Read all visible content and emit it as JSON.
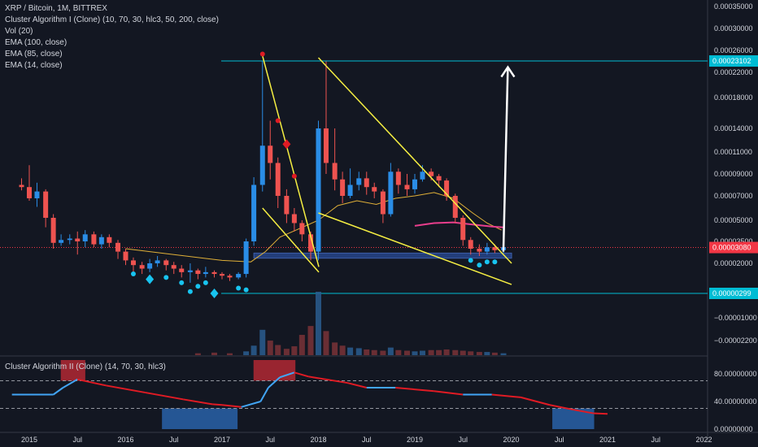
{
  "legend": {
    "symbol": "XRP / Bitcoin, 1M, BITTREX",
    "indicators": [
      "Cluster Algorithm I (Clone) (10, 70, 30, hlc3, 50, 200, close)",
      "Vol (20)",
      "EMA (100, close)",
      "EMA (85, close)",
      "EMA (14, close)"
    ]
  },
  "oscillator": {
    "title": "Cluster Algorithm II (Clone) (14, 70, 30, hlc3)",
    "levels": [
      70,
      30
    ],
    "axis_ticks": [
      {
        "label": "80.00000000",
        "value": 80
      },
      {
        "label": "40.00000000",
        "value": 40
      },
      {
        "label": "0.00000000",
        "value": 0
      }
    ],
    "series": [
      [
        2014.92,
        50
      ],
      [
        2015.35,
        50
      ],
      [
        2015.45,
        60
      ],
      [
        2015.6,
        72
      ],
      [
        2015.9,
        63
      ],
      [
        2016.3,
        53
      ],
      [
        2016.7,
        43
      ],
      [
        2017.0,
        36
      ],
      [
        2017.1,
        35
      ],
      [
        2017.3,
        32
      ],
      [
        2017.5,
        40
      ],
      [
        2017.58,
        60
      ],
      [
        2017.7,
        75
      ],
      [
        2017.85,
        82
      ],
      [
        2018.0,
        76
      ],
      [
        2018.4,
        67
      ],
      [
        2018.6,
        60
      ],
      [
        2018.9,
        60
      ],
      [
        2019.3,
        55
      ],
      [
        2019.6,
        50
      ],
      [
        2019.9,
        50
      ],
      [
        2020.2,
        46
      ],
      [
        2020.5,
        35
      ],
      [
        2020.75,
        28
      ],
      [
        2020.95,
        23
      ],
      [
        2021.1,
        22
      ]
    ],
    "zones": [
      {
        "x0": 2015.55,
        "x1": 2015.72,
        "y0": 70,
        "y1": 100,
        "color": "#b22833"
      },
      {
        "x0": 2017.55,
        "x1": 2017.9,
        "y0": 70,
        "y1": 100,
        "color": "#b22833"
      },
      {
        "x0": 2016.6,
        "x1": 2017.3,
        "y0": 0,
        "y1": 30,
        "color": "#2962a8"
      },
      {
        "x0": 2020.65,
        "x1": 2021.0,
        "y0": 0,
        "y1": 30,
        "color": "#2962a8"
      }
    ]
  },
  "chart_data": {
    "type": "candlestick",
    "x_ticks": [
      {
        "label": "2015",
        "value": 2015.0
      },
      {
        "label": "Jul",
        "value": 2015.5
      },
      {
        "label": "2016",
        "value": 2016.0
      },
      {
        "label": "Jul",
        "value": 2016.5
      },
      {
        "label": "2017",
        "value": 2017.0
      },
      {
        "label": "Jul",
        "value": 2017.5
      },
      {
        "label": "2018",
        "value": 2018.0
      },
      {
        "label": "Jul",
        "value": 2018.5
      },
      {
        "label": "2019",
        "value": 2019.0
      },
      {
        "label": "Jul",
        "value": 2019.5
      },
      {
        "label": "2020",
        "value": 2020.0
      },
      {
        "label": "Jul",
        "value": 2020.5
      },
      {
        "label": "2021",
        "value": 2021.0
      },
      {
        "label": "Jul",
        "value": 2021.5
      },
      {
        "label": "2022",
        "value": 2022.0
      }
    ],
    "y_ticks": [
      {
        "label": "0.00035000"
      },
      {
        "label": "0.00030000"
      },
      {
        "label": "0.00026000"
      },
      {
        "label": "0.00022000"
      },
      {
        "label": "0.00018000"
      },
      {
        "label": "0.00014000"
      },
      {
        "label": "0.00011000"
      },
      {
        "label": "0.00009000"
      },
      {
        "label": "0.00007000"
      },
      {
        "label": "0.00005000"
      },
      {
        "label": "0.00003500"
      },
      {
        "label": "0.00002000"
      },
      {
        "label": "0.00000299"
      },
      {
        "label": "−0.00001000"
      },
      {
        "label": "−0.00002200"
      }
    ],
    "price_labels": [
      {
        "label": "0.00023102",
        "color": "#00bcd4"
      },
      {
        "label": "0.00003080",
        "color": "#f23645"
      },
      {
        "label": "0.00000299",
        "color": "#00bcd4"
      }
    ],
    "candles": [
      [
        2014.92,
        8e-05,
        7.8e-05,
        8.6e-05,
        7.5e-05
      ],
      [
        2015.0,
        7.8e-05,
        6.8e-05,
        9.8e-05,
        6.6e-05
      ],
      [
        2015.08,
        6.8e-05,
        7.4e-05,
        8.2e-05,
        6.1e-05
      ],
      [
        2015.17,
        7.4e-05,
        5.2e-05,
        7.6e-05,
        4.5e-05
      ],
      [
        2015.25,
        5.2e-05,
        3.4e-05,
        5.5e-05,
        3e-05
      ],
      [
        2015.33,
        3.4e-05,
        3.6e-05,
        4e-05,
        3.2e-05
      ],
      [
        2015.42,
        3.6e-05,
        3.7e-05,
        4e-05,
        3.3e-05
      ],
      [
        2015.5,
        3.7e-05,
        3.5e-05,
        4.2e-05,
        2.6e-05
      ],
      [
        2015.58,
        3.5e-05,
        4e-05,
        4.3e-05,
        3.1e-05
      ],
      [
        2015.67,
        4e-05,
        3.3e-05,
        4.2e-05,
        3.1e-05
      ],
      [
        2015.75,
        3.3e-05,
        3.8e-05,
        4e-05,
        3e-05
      ],
      [
        2015.83,
        3.8e-05,
        3.4e-05,
        4e-05,
        3.1e-05
      ],
      [
        2015.92,
        3.4e-05,
        2.8e-05,
        3.6e-05,
        2.3e-05
      ],
      [
        2016.0,
        2.8e-05,
        2.2e-05,
        3e-05,
        1.9e-05
      ],
      [
        2016.08,
        2.2e-05,
        1.9e-05,
        2.4e-05,
        1.5e-05
      ],
      [
        2016.17,
        1.9e-05,
        1.7e-05,
        2.1e-05,
        1.4e-05
      ],
      [
        2016.25,
        1.7e-05,
        2e-05,
        2.3e-05,
        1.5e-05
      ],
      [
        2016.33,
        2e-05,
        2.2e-05,
        2.5e-05,
        1.8e-05
      ],
      [
        2016.42,
        2.2e-05,
        1.9e-05,
        2.3e-05,
        1.6e-05
      ],
      [
        2016.5,
        1.9e-05,
        1.7e-05,
        2.1e-05,
        1.4e-05
      ],
      [
        2016.58,
        1.7e-05,
        1.5e-05,
        1.9e-05,
        1.2e-05
      ],
      [
        2016.67,
        1.5e-05,
        1.6e-05,
        2e-05,
        9e-06
      ],
      [
        2016.75,
        1.6e-05,
        1.4e-05,
        1.7e-05,
        1.1e-05
      ],
      [
        2016.83,
        1.4e-05,
        1.5e-05,
        1.8e-05,
        1.2e-05
      ],
      [
        2016.92,
        1.5e-05,
        1.4e-05,
        1.6e-05,
        1.2e-05
      ],
      [
        2017.0,
        1.4e-05,
        1.3e-05,
        1.5e-05,
        1.1e-05
      ],
      [
        2017.08,
        1.3e-05,
        1.2e-05,
        1.4e-05,
        1e-05
      ],
      [
        2017.17,
        1.2e-05,
        1.4e-05,
        1.5e-05,
        1.1e-05
      ],
      [
        2017.25,
        1.4e-05,
        3.5e-05,
        3.7e-05,
        1.2e-05
      ],
      [
        2017.33,
        3.5e-05,
        8e-05,
        8.7e-05,
        3.2e-05
      ],
      [
        2017.42,
        8e-05,
        0.000118,
        0.00023,
        7.4e-05
      ],
      [
        2017.5,
        0.000118,
        0.0001,
        0.00015,
        8.5e-05
      ],
      [
        2017.58,
        0.0001,
        7e-05,
        0.000105,
        6e-05
      ],
      [
        2017.67,
        7e-05,
        5.5e-05,
        7.6e-05,
        4.8e-05
      ],
      [
        2017.75,
        5.5e-05,
        4.8e-05,
        6e-05,
        4.2e-05
      ],
      [
        2017.83,
        4.8e-05,
        4e-05,
        5e-05,
        3.5e-05
      ],
      [
        2017.92,
        4e-05,
        2.8e-05,
        4.2e-05,
        2.2e-05
      ],
      [
        2018.0,
        2.8e-05,
        0.00014,
        0.00015,
        2.2e-05
      ],
      [
        2018.08,
        0.00014,
        0.0001,
        0.00023,
        9e-05
      ],
      [
        2018.17,
        0.0001,
        8.5e-05,
        0.00014,
        7.5e-05
      ],
      [
        2018.25,
        8.5e-05,
        7e-05,
        9.2e-05,
        6.4e-05
      ],
      [
        2018.33,
        7e-05,
        8e-05,
        9.5e-05,
        6.8e-05
      ],
      [
        2018.42,
        8e-05,
        8.6e-05,
        9.2e-05,
        7.5e-05
      ],
      [
        2018.5,
        8.6e-05,
        7.8e-05,
        9.2e-05,
        7.1e-05
      ],
      [
        2018.58,
        7.8e-05,
        7.4e-05,
        8.2e-05,
        6.8e-05
      ],
      [
        2018.67,
        7.4e-05,
        5.5e-05,
        7.6e-05,
        4.8e-05
      ],
      [
        2018.75,
        5.5e-05,
        9.2e-05,
        0.0001,
        5.3e-05
      ],
      [
        2018.83,
        9.2e-05,
        8e-05,
        9.5e-05,
        7.2e-05
      ],
      [
        2018.92,
        8e-05,
        7.6e-05,
        9e-05,
        7e-05
      ],
      [
        2019.0,
        7.6e-05,
        8.5e-05,
        9e-05,
        7.2e-05
      ],
      [
        2019.08,
        8.5e-05,
        9.2e-05,
        9.8e-05,
        8.3e-05
      ],
      [
        2019.17,
        9.2e-05,
        8.8e-05,
        9.5e-05,
        8.4e-05
      ],
      [
        2019.25,
        8.8e-05,
        8.4e-05,
        9e-05,
        7.8e-05
      ],
      [
        2019.33,
        8.4e-05,
        7e-05,
        8.6e-05,
        6.6e-05
      ],
      [
        2019.42,
        7e-05,
        5.2e-05,
        7.2e-05,
        4.8e-05
      ],
      [
        2019.5,
        5.2e-05,
        3.6e-05,
        5.4e-05,
        3.2e-05
      ],
      [
        2019.58,
        3.6e-05,
        3e-05,
        3.8e-05,
        2.6e-05
      ],
      [
        2019.67,
        3e-05,
        2.8e-05,
        3.3e-05,
        2.5e-05
      ],
      [
        2019.75,
        2.8e-05,
        3.1e-05,
        3.4e-05,
        2.6e-05
      ],
      [
        2019.83,
        3.1e-05,
        2.9e-05,
        3.3e-05,
        2.7e-05
      ],
      [
        2019.92,
        2.9e-05,
        3.1e-05,
        3.5e-05,
        2.7e-05
      ]
    ],
    "volume": [
      [
        2016.75,
        0.3
      ],
      [
        2016.92,
        0.4
      ],
      [
        2017.08,
        0.3
      ],
      [
        2017.25,
        0.6
      ],
      [
        2017.33,
        1.5
      ],
      [
        2017.42,
        4.0
      ],
      [
        2017.5,
        2.3
      ],
      [
        2017.58,
        1.6
      ],
      [
        2017.67,
        1.0
      ],
      [
        2017.75,
        1.4
      ],
      [
        2017.83,
        3.2
      ],
      [
        2017.92,
        4.6
      ],
      [
        2018.0,
        10.0
      ],
      [
        2018.08,
        3.8
      ],
      [
        2018.17,
        2.0
      ],
      [
        2018.25,
        1.5
      ],
      [
        2018.33,
        1.2
      ],
      [
        2018.42,
        1.1
      ],
      [
        2018.5,
        0.9
      ],
      [
        2018.58,
        0.8
      ],
      [
        2018.67,
        0.7
      ],
      [
        2018.75,
        1.2
      ],
      [
        2018.83,
        0.8
      ],
      [
        2018.92,
        0.7
      ],
      [
        2019.0,
        0.6
      ],
      [
        2019.08,
        0.7
      ],
      [
        2019.17,
        0.8
      ],
      [
        2019.25,
        0.8
      ],
      [
        2019.33,
        0.9
      ],
      [
        2019.42,
        0.8
      ],
      [
        2019.5,
        0.7
      ],
      [
        2019.58,
        0.6
      ],
      [
        2019.67,
        0.5
      ],
      [
        2019.75,
        0.5
      ],
      [
        2019.83,
        0.4
      ],
      [
        2019.92,
        0.3
      ]
    ],
    "ema_series": [
      {
        "color": "#e0b038",
        "points": [
          [
            2016.0,
            3e-05
          ],
          [
            2016.5,
            2.6e-05
          ],
          [
            2017.0,
            2.2e-05
          ],
          [
            2017.3,
            2.1e-05
          ],
          [
            2017.45,
            2.8e-05
          ],
          [
            2017.6,
            3.8e-05
          ],
          [
            2017.8,
            4.4e-05
          ],
          [
            2018.0,
            5e-05
          ],
          [
            2018.2,
            6.2e-05
          ],
          [
            2018.4,
            6.6e-05
          ],
          [
            2018.6,
            6.3e-05
          ],
          [
            2018.8,
            6.8e-05
          ],
          [
            2019.0,
            7e-05
          ],
          [
            2019.2,
            7.3e-05
          ],
          [
            2019.4,
            6.8e-05
          ],
          [
            2019.6,
            5.6e-05
          ],
          [
            2019.75,
            4.8e-05
          ],
          [
            2019.9,
            4.3e-05
          ]
        ]
      },
      {
        "color": "#e83e8c",
        "points": [
          [
            2019.0,
            4.6e-05
          ],
          [
            2019.2,
            4.8e-05
          ],
          [
            2019.4,
            4.85e-05
          ],
          [
            2019.6,
            4.7e-05
          ],
          [
            2019.8,
            4.55e-05
          ],
          [
            2019.92,
            4.5e-05
          ]
        ]
      }
    ],
    "trendlines": [
      {
        "color": "#f5ee42",
        "from": [
          2017.42,
          0.000245
        ],
        "to": [
          2017.92,
          1.8e-05
        ]
      },
      {
        "color": "#f5ee42",
        "from": [
          2017.42,
          6e-05
        ],
        "to": [
          2017.92,
          1.5e-05
        ]
      },
      {
        "color": "#f5ee42",
        "from": [
          2018.0,
          0.00024
        ],
        "to": [
          2019.92,
          2e-05
        ]
      },
      {
        "color": "#f5ee42",
        "from": [
          2018.0,
          5.6e-05
        ],
        "to": [
          2019.92,
          8e-06
        ]
      }
    ],
    "markers": [
      {
        "x": 2017.42,
        "y": 0.00025,
        "shape": "dot",
        "color": "#e01b24"
      },
      {
        "x": 2017.58,
        "y": 0.00015,
        "shape": "dot",
        "color": "#e01b24"
      },
      {
        "x": 2017.67,
        "y": 0.00012,
        "shape": "diamond",
        "color": "#e01b24"
      },
      {
        "x": 2017.75,
        "y": 8.8e-05,
        "shape": "dot",
        "color": "#e01b24"
      },
      {
        "x": 2016.08,
        "y": 1.4e-05,
        "shape": "dot",
        "color": "#18c4f0"
      },
      {
        "x": 2016.25,
        "y": 1.1e-05,
        "shape": "diamond",
        "color": "#18c4f0"
      },
      {
        "x": 2016.42,
        "y": 1.2e-05,
        "shape": "dot",
        "color": "#18c4f0"
      },
      {
        "x": 2016.58,
        "y": 9e-06,
        "shape": "dot",
        "color": "#18c4f0"
      },
      {
        "x": 2016.67,
        "y": 4e-06,
        "shape": "dot",
        "color": "#18c4f0"
      },
      {
        "x": 2016.75,
        "y": 7e-06,
        "shape": "dot",
        "color": "#18c4f0"
      },
      {
        "x": 2016.83,
        "y": 9e-06,
        "shape": "dot",
        "color": "#18c4f0"
      },
      {
        "x": 2016.92,
        "y": 3e-06,
        "shape": "diamond",
        "color": "#18c4f0"
      },
      {
        "x": 2017.17,
        "y": 6e-06,
        "shape": "dot",
        "color": "#18c4f0"
      },
      {
        "x": 2017.25,
        "y": 5e-06,
        "shape": "dot",
        "color": "#18c4f0"
      },
      {
        "x": 2019.58,
        "y": 2.2e-05,
        "shape": "dot",
        "color": "#18c4f0"
      },
      {
        "x": 2019.67,
        "y": 1.9e-05,
        "shape": "dot",
        "color": "#18c4f0"
      },
      {
        "x": 2019.75,
        "y": 2.1e-05,
        "shape": "dot",
        "color": "#18c4f0"
      },
      {
        "x": 2019.83,
        "y": 2.1e-05,
        "shape": "dot",
        "color": "#18c4f0"
      }
    ],
    "support_band": {
      "x0": 2017.33,
      "x1": 2019.92,
      "y_low": 2.35e-05,
      "y_high": 2.7e-05,
      "color": "#2a4fa0"
    },
    "arrow": {
      "from": [
        2019.97,
        2.8e-05
      ],
      "to": [
        2020.05,
        0.000232
      ],
      "color": "#ffffff"
    },
    "colors": {
      "up": "#2a8de6",
      "down": "#ef5350",
      "background": "#131722",
      "axis_text": "#d1d4dc"
    }
  }
}
